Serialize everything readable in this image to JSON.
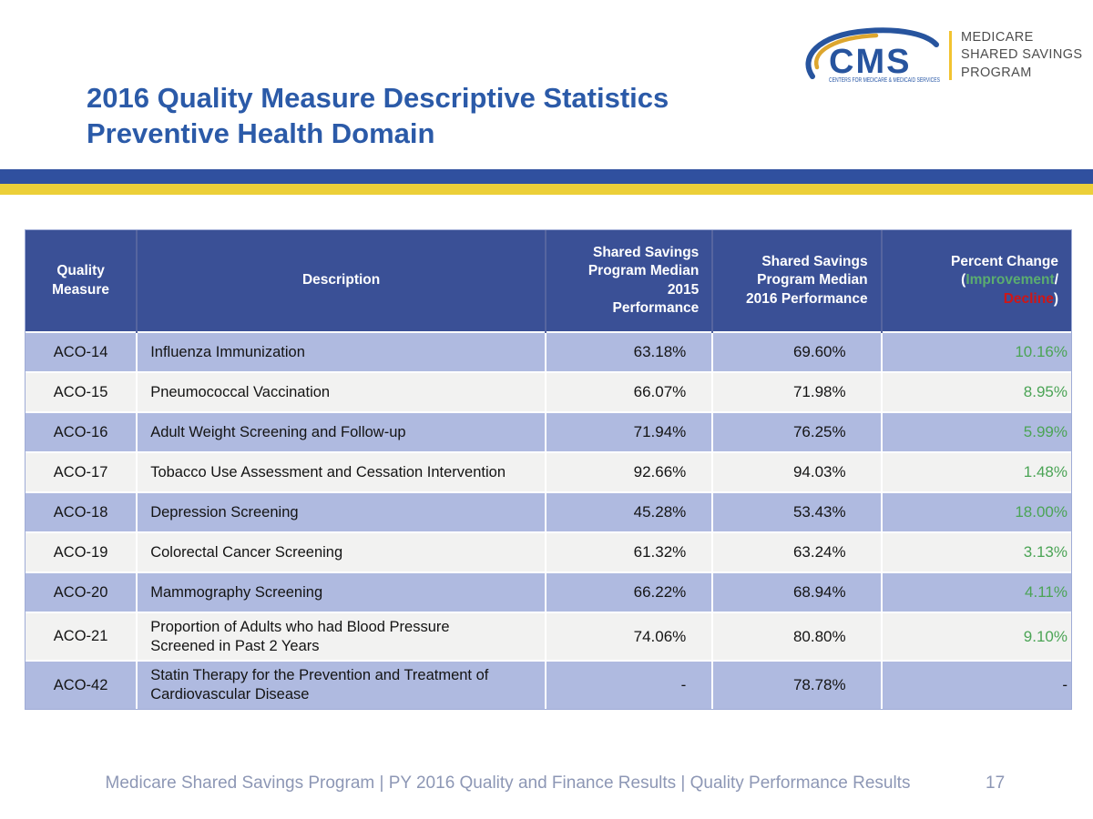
{
  "logo": {
    "cms": "CMS",
    "caption": "CENTERS FOR MEDICARE & MEDICAID SERVICES",
    "program": "MEDICARE\nSHARED SAVINGS\nPROGRAM"
  },
  "title": {
    "line1": "2016 Quality Measure Descriptive Statistics",
    "line2": "Preventive Health Domain"
  },
  "table": {
    "headers": {
      "measure": "Quality Measure",
      "description": "Description",
      "median2015": "Shared Savings\nProgram Median\n2015\nPerformance",
      "median2016": "Shared Savings\nProgram Median\n2016 Performance",
      "percent_change": {
        "title": "Percent Change",
        "open": "(",
        "improvement": "Improvement",
        "slash": "/",
        "decline": "Decline",
        "close": ")"
      }
    },
    "rows": [
      {
        "measure": "ACO-14",
        "description": "Influenza Immunization",
        "median2015": "63.18%",
        "median2016": "69.60%",
        "change": "10.16%",
        "improvement": true
      },
      {
        "measure": "ACO-15",
        "description": "Pneumococcal Vaccination",
        "median2015": "66.07%",
        "median2016": "71.98%",
        "change": "8.95%",
        "improvement": true
      },
      {
        "measure": "ACO-16",
        "description": "Adult Weight Screening and Follow-up",
        "median2015": "71.94%",
        "median2016": "76.25%",
        "change": "5.99%",
        "improvement": true
      },
      {
        "measure": "ACO-17",
        "description": "Tobacco Use Assessment and Cessation Intervention",
        "median2015": "92.66%",
        "median2016": "94.03%",
        "change": "1.48%",
        "improvement": true
      },
      {
        "measure": "ACO-18",
        "description": "Depression Screening",
        "median2015": "45.28%",
        "median2016": "53.43%",
        "change": "18.00%",
        "improvement": true
      },
      {
        "measure": "ACO-19",
        "description": "Colorectal Cancer Screening",
        "median2015": "61.32%",
        "median2016": "63.24%",
        "change": "3.13%",
        "improvement": true
      },
      {
        "measure": "ACO-20",
        "description": "Mammography Screening",
        "median2015": "66.22%",
        "median2016": "68.94%",
        "change": "4.11%",
        "improvement": true
      },
      {
        "measure": "ACO-21",
        "description": "Proportion of Adults who had Blood Pressure Screened in Past 2 Years",
        "median2015": "74.06%",
        "median2016": "80.80%",
        "change": "9.10%",
        "improvement": true
      },
      {
        "measure": "ACO-42",
        "description": "Statin Therapy for the Prevention and Treatment of Cardiovascular Disease",
        "median2015": "-",
        "median2016": "78.78%",
        "change": "-",
        "improvement": false
      }
    ]
  },
  "footer": {
    "text": "Medicare Shared Savings Program | PY 2016 Quality and Finance Results | Quality Performance Results",
    "page": "17"
  },
  "colors": {
    "title_blue": "#2B5AA8",
    "bar_blue": "#30509F",
    "bar_yellow": "#ECCF39",
    "header_bg": "#3A5096",
    "row_blue": "#AFBAE0",
    "row_offwhite": "#F2F2F1",
    "improvement_green": "#4BA455",
    "decline_red": "#D01616",
    "footer_gray": "#8D97B5",
    "logo_blue": "#27549E",
    "logo_gold": "#F2C330"
  }
}
